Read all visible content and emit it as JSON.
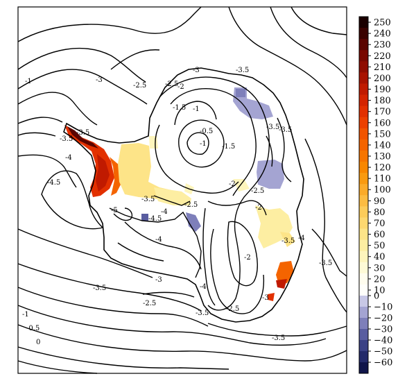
{
  "contour_labels": [
    "-1",
    "-3",
    "-2.5",
    "-3",
    "-3.5",
    "-2.5",
    "-2",
    "-1.5",
    "-1",
    "-3.5",
    "-3.5",
    "-3.5",
    "-3.5",
    "-0.5",
    "-1",
    "-1.5",
    "-4",
    "-4.5",
    "-2",
    "-2.5",
    "-3.5",
    "-5",
    "-4",
    "-4.5",
    "-2.5",
    "-2",
    "-4",
    "-3.5",
    "-4",
    "-2",
    "-3.5",
    "-3",
    "-2.5",
    "-4",
    "-3.5",
    "-2.5",
    "-3",
    "-1",
    "-0.5",
    "0",
    "-3.5"
  ],
  "colorbar": {
    "ticks": [
      "250",
      "240",
      "230",
      "220",
      "210",
      "200",
      "190",
      "180",
      "170",
      "160",
      "150",
      "140",
      "130",
      "120",
      "110",
      "100",
      "90",
      "80",
      "70",
      "60",
      "50",
      "40",
      "30",
      "20",
      "10",
      "0",
      "−10",
      "−20",
      "−30",
      "−40",
      "−50",
      "−60"
    ],
    "positive_colors": [
      "#1a0000",
      "#3a0200",
      "#5a0400",
      "#790800",
      "#8f0c00",
      "#a81200",
      "#c01a00",
      "#d42400",
      "#e23000",
      "#ec4000",
      "#f15400",
      "#f46400",
      "#f67500",
      "#f88700",
      "#f99a10",
      "#fbab2a",
      "#fcbc42",
      "#fccc5a",
      "#fdd870",
      "#fde488",
      "#fdeea2",
      "#fef5bc",
      "#fefad6",
      "#fffdee",
      "#fffffa"
    ],
    "negative_colors": [
      "#c8c8e6",
      "#a4a4d2",
      "#7e7fba",
      "#595da0",
      "#3a4185",
      "#232a6a",
      "#10154a"
    ]
  }
}
